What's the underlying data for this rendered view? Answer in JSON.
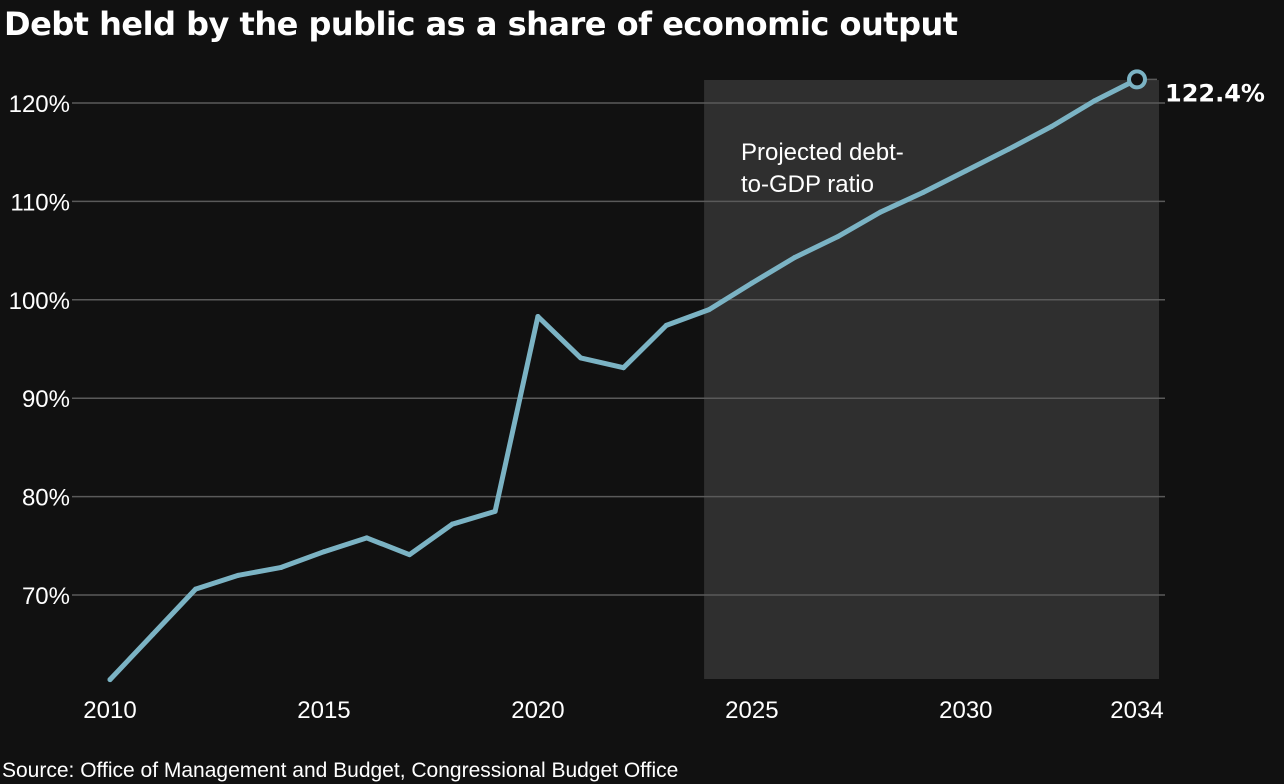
{
  "chart_data": {
    "type": "line",
    "title": "Debt held by the public as a share of economic output",
    "xlabel": "",
    "ylabel": "",
    "source": "Source: Office of Management and Budget, Congressional Budget Office",
    "xlim": [
      2010,
      2034
    ],
    "ylim": [
      61,
      124
    ],
    "x_ticks": [
      2010,
      2015,
      2020,
      2025,
      2030,
      2034
    ],
    "x_tick_labels": [
      "2010",
      "2015",
      "2020",
      "2025",
      "2030",
      "2034"
    ],
    "y_ticks": [
      70,
      80,
      90,
      100,
      110,
      120
    ],
    "y_tick_labels": [
      "70%",
      "80%",
      "90%",
      "100%",
      "110%",
      "120%"
    ],
    "grid": "horizontal",
    "projection_region": {
      "x_start": 2024,
      "x_end": 2034.5,
      "label_lines": [
        "Projected debt-",
        "to-GDP ratio"
      ]
    },
    "end_label": "122.4%",
    "series": [
      {
        "x": [
          2010,
          2011,
          2012,
          2013,
          2014,
          2015,
          2016,
          2017,
          2018,
          2019,
          2020,
          2021,
          2022,
          2023,
          2024,
          2025,
          2026,
          2027,
          2028,
          2029,
          2030,
          2031,
          2032,
          2033,
          2034
        ],
        "values": [
          61.4,
          66.0,
          70.6,
          72.0,
          72.8,
          74.4,
          75.8,
          74.1,
          77.2,
          78.5,
          98.3,
          94.1,
          93.1,
          97.4,
          99.0,
          101.7,
          104.3,
          106.4,
          108.9,
          110.9,
          113.1,
          115.3,
          117.6,
          120.2,
          122.4
        ]
      }
    ],
    "colors": {
      "background": "#111111",
      "line": "#7bb3c4",
      "gridline": "#5a5a5a",
      "projection_band": "#2f2f2f",
      "text": "#ffffff"
    }
  }
}
